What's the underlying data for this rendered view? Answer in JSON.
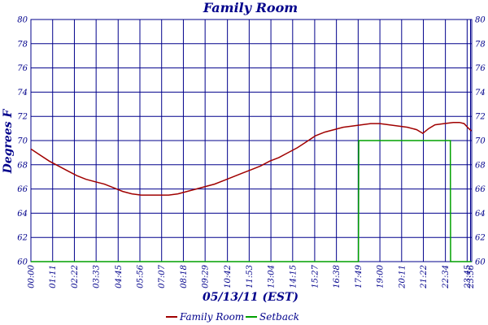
{
  "chart_data": {
    "type": "line",
    "title": "Family Room",
    "xlabel": "05/13/11 (EST)",
    "ylabel": "Degrees F",
    "ylim": [
      60,
      80
    ],
    "y_ticks": [
      60,
      62,
      64,
      66,
      68,
      70,
      72,
      74,
      76,
      78,
      80
    ],
    "xlim_minutes": [
      0,
      1440
    ],
    "x_tick_labels": [
      "00:00",
      "01:11",
      "02:22",
      "03:33",
      "04:45",
      "05:56",
      "07:07",
      "08:18",
      "09:29",
      "10:42",
      "11:53",
      "13:04",
      "14:15",
      "15:27",
      "16:38",
      "17:49",
      "19:00",
      "20:11",
      "21:22",
      "22:34",
      "23:45",
      "23:56"
    ],
    "grid": true,
    "legend_position": "bottom",
    "colors": {
      "grid": "#00008b",
      "text": "#00008b",
      "family_room": "#a00000",
      "setback": "#00a000"
    },
    "series": [
      {
        "name": "Family Room",
        "x": [
          "00:00",
          "00:30",
          "01:00",
          "01:30",
          "02:00",
          "02:30",
          "03:00",
          "03:30",
          "04:00",
          "04:30",
          "05:00",
          "05:30",
          "06:00",
          "06:30",
          "07:00",
          "07:30",
          "08:00",
          "08:30",
          "09:00",
          "09:30",
          "10:00",
          "10:30",
          "11:00",
          "11:30",
          "12:00",
          "12:30",
          "13:00",
          "13:30",
          "14:00",
          "14:30",
          "15:00",
          "15:30",
          "16:00",
          "16:30",
          "17:00",
          "17:30",
          "18:00",
          "18:30",
          "19:00",
          "19:30",
          "20:00",
          "20:30",
          "21:00",
          "21:20",
          "21:40",
          "22:00",
          "22:30",
          "23:00",
          "23:20",
          "23:35",
          "23:50",
          "23:59"
        ],
        "values": [
          69.3,
          68.8,
          68.3,
          67.9,
          67.5,
          67.1,
          66.8,
          66.6,
          66.4,
          66.1,
          65.8,
          65.6,
          65.5,
          65.5,
          65.5,
          65.5,
          65.6,
          65.8,
          66.0,
          66.2,
          66.4,
          66.7,
          67.0,
          67.3,
          67.6,
          67.9,
          68.3,
          68.6,
          69.0,
          69.4,
          69.9,
          70.4,
          70.7,
          70.9,
          71.1,
          71.2,
          71.3,
          71.4,
          71.4,
          71.3,
          71.2,
          71.1,
          70.9,
          70.6,
          71.0,
          71.3,
          71.4,
          71.5,
          71.5,
          71.4,
          71.0,
          70.8
        ]
      },
      {
        "name": "Setback",
        "x": [
          "00:00",
          "17:50",
          "17:51",
          "22:50",
          "22:51",
          "23:59"
        ],
        "values": [
          60,
          60,
          70,
          70,
          60,
          60
        ]
      }
    ]
  }
}
